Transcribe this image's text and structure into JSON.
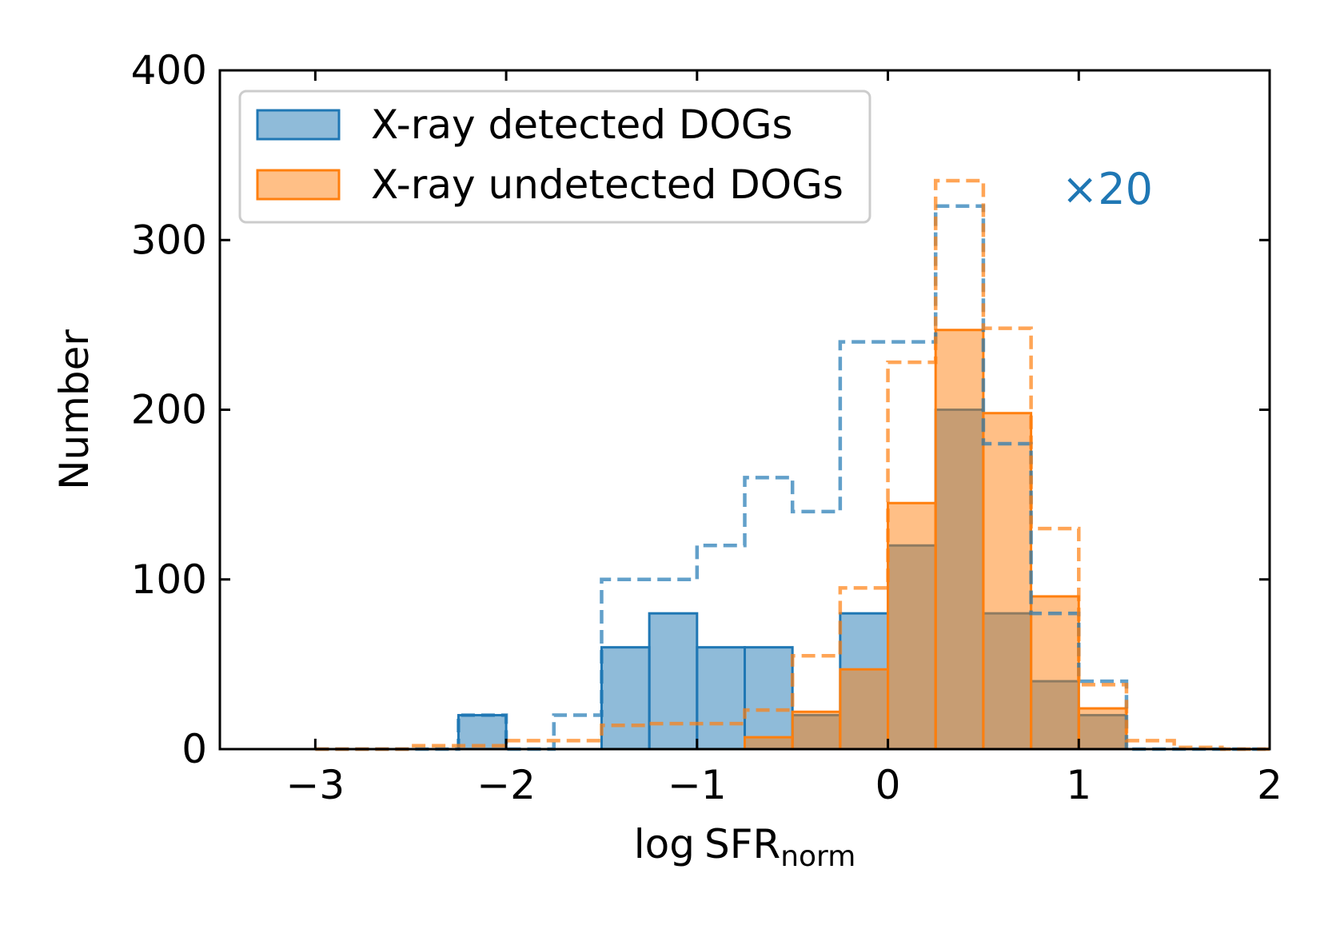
{
  "chart_data": {
    "type": "histogram",
    "xlabel": {
      "prefix": "log",
      "main": "SFR",
      "subscript": "norm"
    },
    "ylabel": "Number",
    "xlim": [
      -3.5,
      2.0
    ],
    "ylim": [
      0,
      400
    ],
    "xticks": [
      -3,
      -2,
      -1,
      0,
      1,
      2
    ],
    "xtick_labels": [
      "−3",
      "−2",
      "−1",
      "0",
      "1",
      "2"
    ],
    "yticks": [
      0,
      100,
      200,
      300,
      400
    ],
    "ytick_labels": [
      "0",
      "100",
      "200",
      "300",
      "400"
    ],
    "legend": {
      "placement": "upper-left",
      "entries": [
        "X-ray detected DOGs",
        "X-ray undetected DOGs"
      ]
    },
    "annotation": {
      "text": "×20",
      "placement": "upper-right",
      "color": "#1f77b4"
    },
    "bin_edges": [
      -3.0,
      -2.75,
      -2.5,
      -2.25,
      -2.0,
      -1.75,
      -1.5,
      -1.25,
      -1.0,
      -0.75,
      -0.5,
      -0.25,
      0.0,
      0.25,
      0.5,
      0.75,
      1.0,
      1.25,
      1.5,
      1.75,
      2.0
    ],
    "series": [
      {
        "name": "X-ray detected DOGs",
        "style": "filled",
        "scale_factor": 20,
        "color": "#1f77b4",
        "values": [
          0,
          0,
          0,
          20,
          0,
          0,
          60,
          80,
          60,
          60,
          20,
          80,
          120,
          200,
          80,
          40,
          20,
          0,
          0,
          0
        ]
      },
      {
        "name": "X-ray undetected DOGs",
        "style": "filled",
        "color": "#ff7f0e",
        "values": [
          0,
          0,
          0,
          0,
          0,
          0,
          0,
          0,
          0,
          7,
          22,
          47,
          145,
          247,
          198,
          90,
          24,
          0,
          0,
          0
        ]
      },
      {
        "name": "X-ray detected DOGs (×20, dashed)",
        "style": "dashed",
        "color": "#1f77b4",
        "values": [
          0,
          0,
          0,
          20,
          0,
          20,
          100,
          100,
          120,
          160,
          140,
          240,
          240,
          320,
          180,
          80,
          40,
          0,
          0,
          0
        ]
      },
      {
        "name": "X-ray undetected DOGs (dashed)",
        "style": "dashed",
        "color": "#ff7f0e",
        "values": [
          0,
          0,
          2,
          2,
          5,
          5,
          14,
          15,
          15,
          23,
          55,
          95,
          228,
          335,
          248,
          130,
          38,
          5,
          1,
          0
        ]
      }
    ]
  }
}
